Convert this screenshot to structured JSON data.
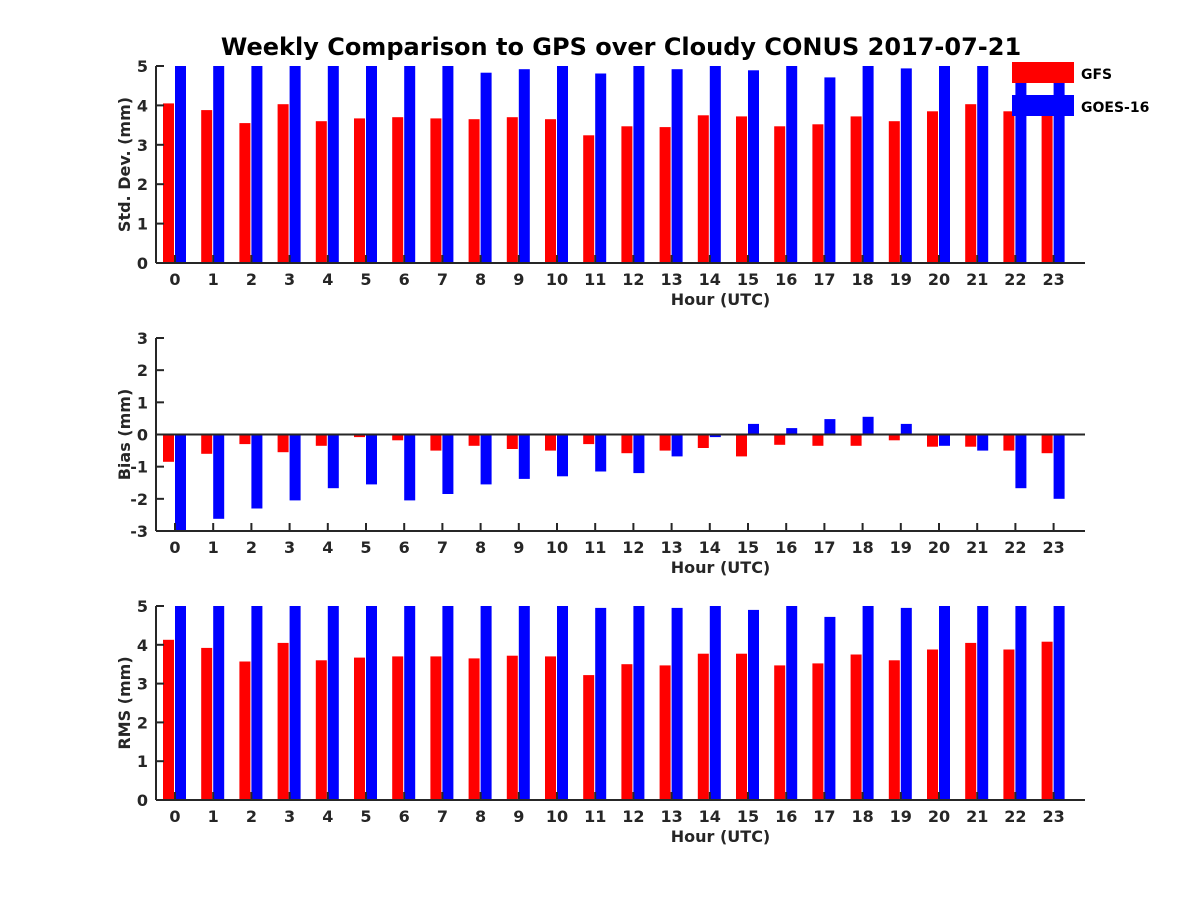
{
  "title": "Weekly Comparison to GPS over Cloudy CONUS 2017-07-21",
  "legend": [
    {
      "name": "GFS",
      "color": "#ff0000"
    },
    {
      "name": "GOES-16",
      "color": "#0000ff"
    }
  ],
  "chart_data": [
    {
      "type": "bar",
      "categories": [
        "0",
        "1",
        "2",
        "3",
        "4",
        "5",
        "6",
        "7",
        "8",
        "9",
        "10",
        "11",
        "12",
        "13",
        "14",
        "15",
        "16",
        "17",
        "18",
        "19",
        "20",
        "21",
        "22",
        "23"
      ],
      "xlabel": "Hour (UTC)",
      "ylabel": "Std. Dev. (mm)",
      "ylim": [
        0,
        5
      ],
      "yticks": [
        "0",
        "1",
        "2",
        "3",
        "4",
        "5"
      ],
      "legend_position": "top-right (outside)",
      "series": [
        {
          "name": "GFS",
          "color": "#ff0000",
          "values": [
            4.05,
            3.88,
            3.55,
            4.03,
            3.6,
            3.67,
            3.7,
            3.67,
            3.65,
            3.7,
            3.65,
            3.24,
            3.47,
            3.45,
            3.75,
            3.72,
            3.47,
            3.52,
            3.72,
            3.6,
            3.85,
            4.03,
            3.85,
            3.85
          ]
        },
        {
          "name": "GOES-16",
          "color": "#0000ff",
          "values": [
            5,
            5,
            5,
            5,
            5,
            5,
            5,
            5,
            4.83,
            4.92,
            5,
            4.81,
            5,
            4.92,
            5,
            4.89,
            5,
            4.71,
            5,
            4.94,
            5,
            5,
            5,
            5
          ]
        }
      ]
    },
    {
      "type": "bar",
      "categories": [
        "0",
        "1",
        "2",
        "3",
        "4",
        "5",
        "6",
        "7",
        "8",
        "9",
        "10",
        "11",
        "12",
        "13",
        "14",
        "15",
        "16",
        "17",
        "18",
        "19",
        "20",
        "21",
        "22",
        "23"
      ],
      "xlabel": "Hour (UTC)",
      "ylabel": "Bias (mm)",
      "ylim": [
        -3,
        3
      ],
      "yticks": [
        "-3",
        "-2",
        "-1",
        "0",
        "1",
        "2",
        "3"
      ],
      "series": [
        {
          "name": "GFS",
          "color": "#ff0000",
          "values": [
            -0.85,
            -0.6,
            -0.3,
            -0.55,
            -0.35,
            -0.08,
            -0.18,
            -0.5,
            -0.35,
            -0.45,
            -0.5,
            -0.3,
            -0.58,
            -0.5,
            -0.42,
            -0.68,
            -0.32,
            -0.35,
            -0.35,
            -0.18,
            -0.38,
            -0.38,
            -0.5,
            -0.58
          ]
        },
        {
          "name": "GOES-16",
          "color": "#0000ff",
          "values": [
            -2.98,
            -2.62,
            -2.3,
            -2.05,
            -1.67,
            -1.55,
            -2.05,
            -1.85,
            -1.55,
            -1.38,
            -1.3,
            -1.15,
            -1.2,
            -0.68,
            -0.08,
            0.33,
            0.2,
            0.48,
            0.55,
            0.33,
            -0.35,
            -0.5,
            -1.67,
            -2.0
          ]
        }
      ]
    },
    {
      "type": "bar",
      "categories": [
        "0",
        "1",
        "2",
        "3",
        "4",
        "5",
        "6",
        "7",
        "8",
        "9",
        "10",
        "11",
        "12",
        "13",
        "14",
        "15",
        "16",
        "17",
        "18",
        "19",
        "20",
        "21",
        "22",
        "23"
      ],
      "xlabel": "Hour (UTC)",
      "ylabel": "RMS (mm)",
      "ylim": [
        0,
        5
      ],
      "yticks": [
        "0",
        "1",
        "2",
        "3",
        "4",
        "5"
      ],
      "series": [
        {
          "name": "GFS",
          "color": "#ff0000",
          "values": [
            4.13,
            3.92,
            3.57,
            4.05,
            3.6,
            3.67,
            3.7,
            3.7,
            3.65,
            3.72,
            3.7,
            3.22,
            3.5,
            3.47,
            3.77,
            3.77,
            3.47,
            3.52,
            3.75,
            3.6,
            3.88,
            4.05,
            3.88,
            4.08
          ]
        },
        {
          "name": "GOES-16",
          "color": "#0000ff",
          "values": [
            5,
            5,
            5,
            5,
            5,
            5,
            5,
            5,
            5,
            5,
            5,
            4.95,
            5,
            4.95,
            5,
            4.9,
            5,
            4.72,
            5,
            4.95,
            5,
            5,
            5,
            5
          ]
        }
      ]
    }
  ]
}
